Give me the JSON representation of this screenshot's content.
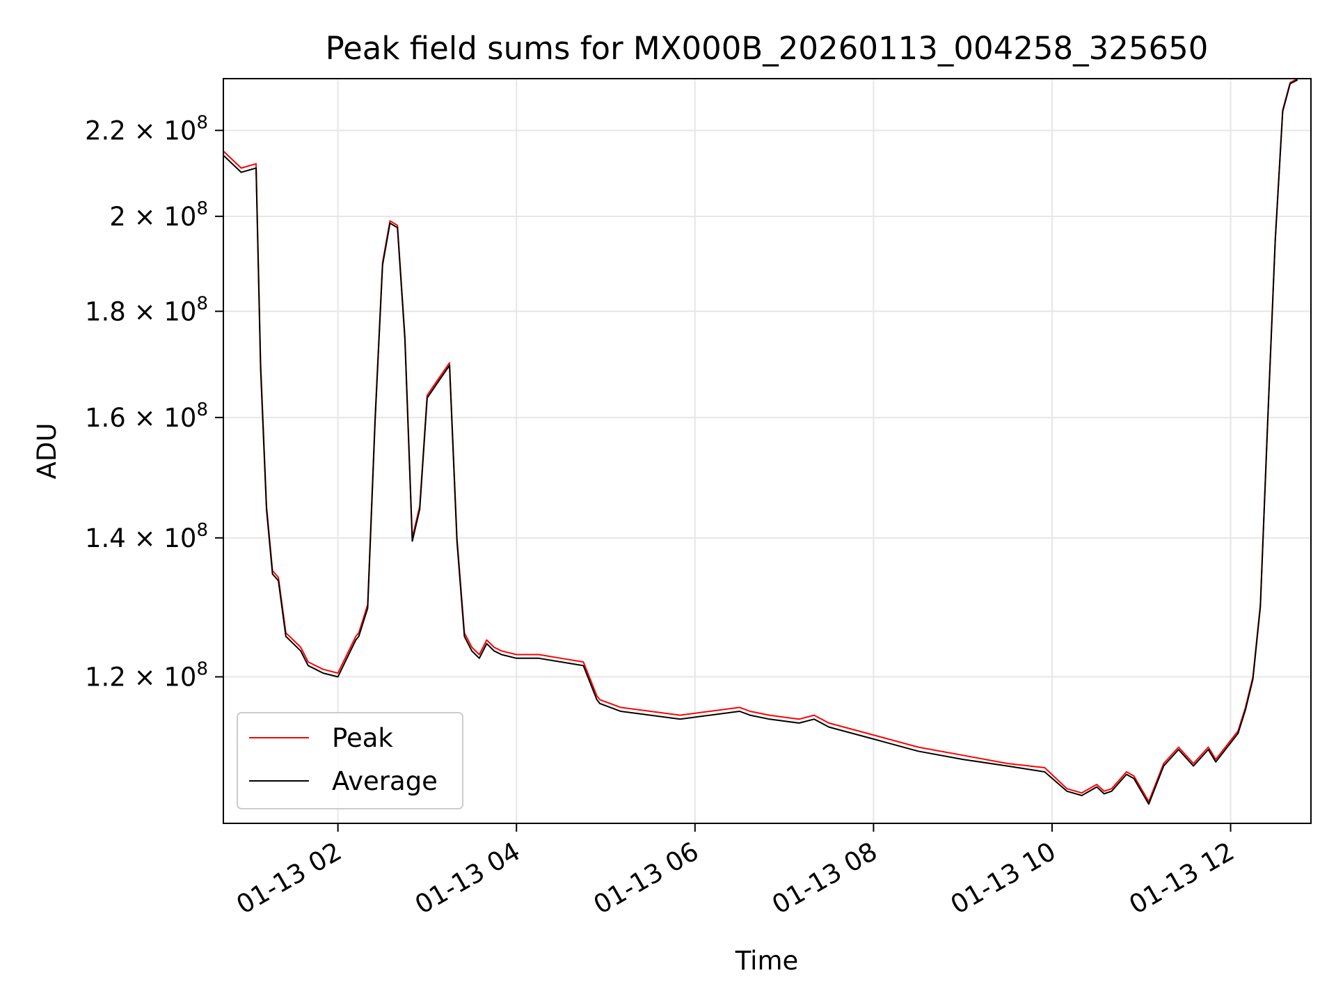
{
  "chart_data": {
    "type": "line",
    "title": "Peak field sums for MX000B_20260113_004258_325650",
    "xlabel": "Time",
    "ylabel": "ADU",
    "y_scale": "log",
    "xlim": [
      "2026-01-13 00:43",
      "2026-01-13 12:54"
    ],
    "ylim": [
      102000000,
      233000000
    ],
    "grid": true,
    "legend_position": "lower-left",
    "x_ticks": [
      {
        "value": "2026-01-13 02:00",
        "label": "01-13 02"
      },
      {
        "value": "2026-01-13 04:00",
        "label": "01-13 04"
      },
      {
        "value": "2026-01-13 06:00",
        "label": "01-13 06"
      },
      {
        "value": "2026-01-13 08:00",
        "label": "01-13 08"
      },
      {
        "value": "2026-01-13 10:00",
        "label": "01-13 10"
      },
      {
        "value": "2026-01-13 12:00",
        "label": "01-13 12"
      }
    ],
    "y_ticks": [
      {
        "value": 120000000,
        "mantissa": "1.2",
        "exp": "8"
      },
      {
        "value": 140000000,
        "mantissa": "1.4",
        "exp": "8"
      },
      {
        "value": 160000000,
        "mantissa": "1.6",
        "exp": "8"
      },
      {
        "value": 180000000,
        "mantissa": "1.8",
        "exp": "8"
      },
      {
        "value": 200000000,
        "mantissa": "2",
        "exp": "8"
      },
      {
        "value": 220000000,
        "mantissa": "2.2",
        "exp": "8"
      }
    ],
    "times_sign": "×",
    "tick_base": "10",
    "x": [
      "2026-01-13 00:43",
      "2026-01-13 00:55",
      "2026-01-13 01:05",
      "2026-01-13 01:08",
      "2026-01-13 01:12",
      "2026-01-13 01:16",
      "2026-01-13 01:20",
      "2026-01-13 01:25",
      "2026-01-13 01:30",
      "2026-01-13 01:35",
      "2026-01-13 01:40",
      "2026-01-13 01:45",
      "2026-01-13 01:50",
      "2026-01-13 02:00",
      "2026-01-13 02:12",
      "2026-01-13 02:14",
      "2026-01-13 02:20",
      "2026-01-13 02:25",
      "2026-01-13 02:30",
      "2026-01-13 02:35",
      "2026-01-13 02:40",
      "2026-01-13 02:45",
      "2026-01-13 02:50",
      "2026-01-13 02:55",
      "2026-01-13 03:00",
      "2026-01-13 03:05",
      "2026-01-13 03:10",
      "2026-01-13 03:15",
      "2026-01-13 03:20",
      "2026-01-13 03:25",
      "2026-01-13 03:30",
      "2026-01-13 03:35",
      "2026-01-13 03:40",
      "2026-01-13 03:45",
      "2026-01-13 03:50",
      "2026-01-13 04:00",
      "2026-01-13 04:15",
      "2026-01-13 04:30",
      "2026-01-13 04:45",
      "2026-01-13 04:54",
      "2026-01-13 04:56",
      "2026-01-13 05:10",
      "2026-01-13 05:30",
      "2026-01-13 05:50",
      "2026-01-13 06:10",
      "2026-01-13 06:30",
      "2026-01-13 06:37",
      "2026-01-13 06:50",
      "2026-01-13 07:10",
      "2026-01-13 07:20",
      "2026-01-13 07:30",
      "2026-01-13 08:00",
      "2026-01-13 08:30",
      "2026-01-13 09:00",
      "2026-01-13 09:30",
      "2026-01-13 09:55",
      "2026-01-13 10:10",
      "2026-01-13 10:20",
      "2026-01-13 10:30",
      "2026-01-13 10:35",
      "2026-01-13 10:40",
      "2026-01-13 10:50",
      "2026-01-13 10:55",
      "2026-01-13 11:05",
      "2026-01-13 11:15",
      "2026-01-13 11:25",
      "2026-01-13 11:30",
      "2026-01-13 11:35",
      "2026-01-13 11:45",
      "2026-01-13 11:50",
      "2026-01-13 12:05",
      "2026-01-13 12:10",
      "2026-01-13 12:15",
      "2026-01-13 12:20",
      "2026-01-13 12:25",
      "2026-01-13 12:30",
      "2026-01-13 12:35",
      "2026-01-13 12:40",
      "2026-01-13 12:45"
    ],
    "series": [
      {
        "name": "Peak",
        "color": "#ff0000",
        "values": [
          215000000,
          211000000,
          212000000,
          170000000,
          145000000,
          135000000,
          134000000,
          126000000,
          125000000,
          124000000,
          122000000,
          121500000,
          121000000,
          120500000,
          125500000,
          126000000,
          130000000,
          160000000,
          190000000,
          199000000,
          198000000,
          175000000,
          140000000,
          145000000,
          164000000,
          166000000,
          168000000,
          170000000,
          140000000,
          126000000,
          124000000,
          123000000,
          125000000,
          124000000,
          123500000,
          123000000,
          123000000,
          122500000,
          122000000,
          117500000,
          117000000,
          116000000,
          115500000,
          115000000,
          115500000,
          116000000,
          115500000,
          115000000,
          114500000,
          115000000,
          114000000,
          112500000,
          111000000,
          110000000,
          109000000,
          108500000,
          106000000,
          105500000,
          106500000,
          105700000,
          106000000,
          108000000,
          107500000,
          104500000,
          109000000,
          111000000,
          110000000,
          109000000,
          111000000,
          109500000,
          113000000,
          116000000,
          120000000,
          130000000,
          160000000,
          195000000,
          225000000,
          232000000,
          233000000
        ]
      },
      {
        "name": "Average",
        "color": "#000000",
        "values": [
          214000000,
          210000000,
          211000000,
          169000000,
          144500000,
          134500000,
          133500000,
          125500000,
          124500000,
          123500000,
          121500000,
          121000000,
          120500000,
          120000000,
          125000000,
          125500000,
          129500000,
          159500000,
          189500000,
          198500000,
          197500000,
          174500000,
          139500000,
          144500000,
          163500000,
          165500000,
          167500000,
          169500000,
          139500000,
          125500000,
          123500000,
          122500000,
          124500000,
          123500000,
          123000000,
          122500000,
          122500000,
          122000000,
          121500000,
          117000000,
          116500000,
          115500000,
          115000000,
          114500000,
          115000000,
          115500000,
          115000000,
          114500000,
          114000000,
          114500000,
          113500000,
          112000000,
          110500000,
          109500000,
          108700000,
          108000000,
          105700000,
          105200000,
          106200000,
          105400000,
          105700000,
          107700000,
          107200000,
          104200000,
          108700000,
          110700000,
          109700000,
          108700000,
          110700000,
          109200000,
          112700000,
          115700000,
          119700000,
          129700000,
          159700000,
          194700000,
          224700000,
          231700000,
          232700000
        ]
      }
    ]
  }
}
